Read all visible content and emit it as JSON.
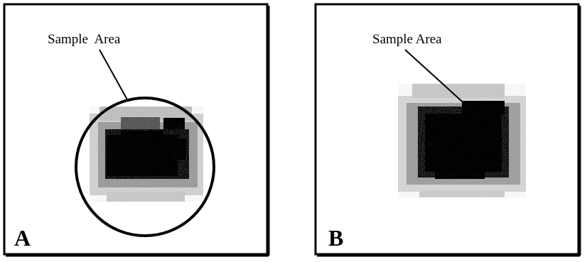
{
  "panels": [
    {
      "annotation": "Sample  Area",
      "label": "A"
    },
    {
      "annotation": "Sample Area",
      "label": "B"
    }
  ]
}
